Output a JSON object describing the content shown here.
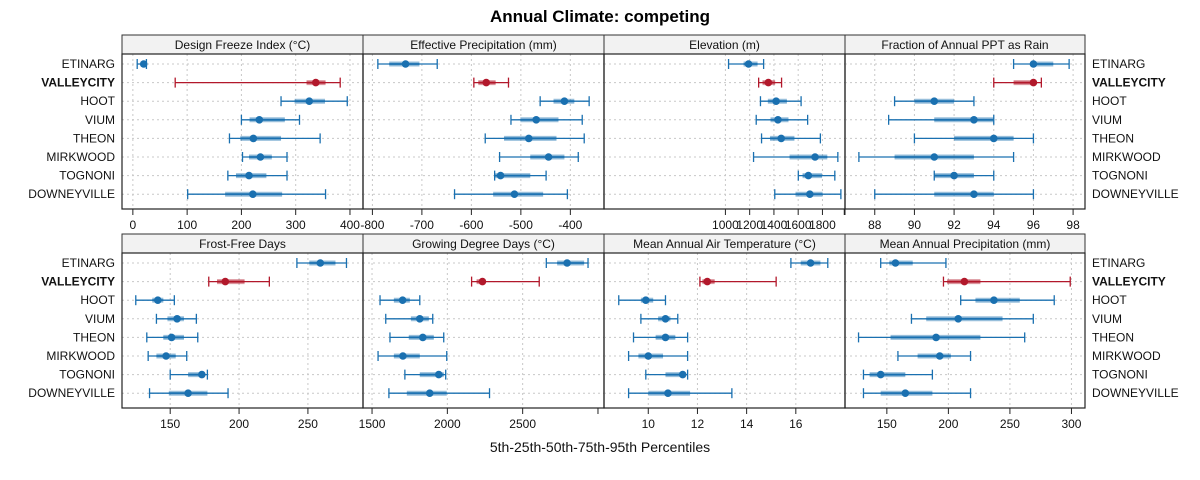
{
  "chart_data": {
    "type": "dotplot-percentile-intervals",
    "title": "Annual Climate: competing",
    "xlabel": "5th-25th-50th-75th-95th Percentiles",
    "legend": "none",
    "grid": true,
    "rows": [
      "ETINARG",
      "VALLEYCITY",
      "HOOT",
      "VIUM",
      "THEON",
      "MIRKWOOD",
      "TOGNONI",
      "DOWNEYVILLE"
    ],
    "highlight_row": "VALLEYCITY",
    "colors": {
      "default": "#1a70b0",
      "highlight": "#b2182b"
    },
    "percentile_keys": [
      "p5",
      "p25",
      "p50",
      "p75",
      "p95"
    ],
    "panels": [
      {
        "name": "Design Freeze Index (°C)",
        "xlim": [
          -20,
          424
        ],
        "ticks": [
          0,
          100,
          200,
          300,
          400
        ],
        "tick_labels": [
          "0",
          "100",
          "200",
          "300",
          "400"
        ],
        "values": [
          [
            8,
            14,
            20,
            22,
            25
          ],
          [
            78,
            320,
            337,
            355,
            382
          ],
          [
            273,
            298,
            325,
            354,
            395
          ],
          [
            200,
            215,
            233,
            280,
            307
          ],
          [
            178,
            198,
            222,
            273,
            345
          ],
          [
            202,
            214,
            235,
            256,
            284
          ],
          [
            175,
            190,
            214,
            246,
            284
          ],
          [
            101,
            170,
            221,
            275,
            355
          ]
        ]
      },
      {
        "name": "Effective Precipitation (mm)",
        "xlim": [
          -819,
          -332
        ],
        "ticks": [
          -800,
          -700,
          -600,
          -500,
          -400
        ],
        "tick_labels": [
          "-800",
          "-700",
          "-600",
          "-500",
          "-400"
        ],
        "values": [
          [
            -789,
            -766,
            -733,
            -705,
            -669
          ],
          [
            -595,
            -586,
            -570,
            -551,
            -525
          ],
          [
            -461,
            -434,
            -412,
            -392,
            -362
          ],
          [
            -520,
            -501,
            -469,
            -424,
            -376
          ],
          [
            -572,
            -534,
            -484,
            -428,
            -372
          ],
          [
            -543,
            -481,
            -444,
            -412,
            -384
          ],
          [
            -553,
            -552,
            -541,
            -481,
            -449
          ],
          [
            -634,
            -556,
            -513,
            -455,
            -406
          ]
        ]
      },
      {
        "name": "Elevation (m)",
        "xlim": [
          -1,
          1986
        ],
        "ticks": [
          1000,
          1200,
          1400,
          1600,
          1800
        ],
        "tick_labels": [
          "1000",
          "1200",
          "1400",
          "1600",
          "1800"
        ],
        "extra_ticks": [
          1980
        ],
        "values": [
          [
            1026,
            1150,
            1191,
            1265,
            1315
          ],
          [
            1274,
            1306,
            1354,
            1410,
            1463
          ],
          [
            1289,
            1350,
            1418,
            1507,
            1624
          ],
          [
            1254,
            1372,
            1433,
            1520,
            1678
          ],
          [
            1298,
            1368,
            1460,
            1569,
            1783
          ],
          [
            1232,
            1529,
            1739,
            1840,
            1927
          ],
          [
            1601,
            1636,
            1684,
            1797,
            1902
          ],
          [
            1407,
            1578,
            1696,
            1801,
            1952
          ]
        ]
      },
      {
        "name": "Fraction of Annual PPT as Rain",
        "xlim": [
          86.5,
          98.6
        ],
        "ticks": [
          88,
          90,
          92,
          94,
          96,
          98
        ],
        "tick_labels": [
          "88",
          "90",
          "92",
          "94",
          "96",
          "98"
        ],
        "extra_ticks": [
          86.5
        ],
        "values": [
          [
            95,
            96,
            96,
            97,
            97.8
          ],
          [
            94,
            95,
            96,
            96,
            96.4
          ],
          [
            89,
            90,
            91,
            92,
            93
          ],
          [
            88.7,
            91,
            93,
            94,
            94
          ],
          [
            90,
            92,
            94,
            95,
            96
          ],
          [
            87.2,
            89,
            91,
            93,
            95
          ],
          [
            91,
            91,
            92,
            93,
            94
          ],
          [
            88,
            91,
            93,
            94,
            96
          ]
        ]
      },
      {
        "name": "Frost-Free Days",
        "xlim": [
          115,
          290
        ],
        "ticks": [
          150,
          200,
          250
        ],
        "tick_labels": [
          "150",
          "200",
          "250"
        ],
        "values": [
          [
            242,
            251,
            259,
            270,
            278
          ],
          [
            178,
            184,
            190,
            204,
            222
          ],
          [
            125,
            137,
            141,
            145,
            153
          ],
          [
            140,
            148,
            155,
            160,
            169
          ],
          [
            133,
            145,
            151,
            160,
            170
          ],
          [
            134,
            140,
            147,
            154,
            162
          ],
          [
            150,
            163,
            173,
            175,
            177
          ],
          [
            135,
            149,
            163,
            177,
            192
          ]
        ]
      },
      {
        "name": "Growing Degree Days (°C)",
        "xlim": [
          1440,
          3040
        ],
        "ticks": [
          1500,
          2000,
          2500
        ],
        "tick_labels": [
          "1500",
          "2000",
          "2500"
        ],
        "extra_ticks": [
          3000
        ],
        "values": [
          [
            2657,
            2729,
            2795,
            2908,
            2934
          ],
          [
            2161,
            2194,
            2233,
            2247,
            2610
          ],
          [
            1553,
            1645,
            1703,
            1751,
            1817
          ],
          [
            1591,
            1758,
            1817,
            1877,
            1903
          ],
          [
            1619,
            1744,
            1837,
            1910,
            1976
          ],
          [
            1540,
            1645,
            1705,
            1817,
            1996
          ],
          [
            1718,
            1817,
            1943,
            1976,
            1989
          ],
          [
            1612,
            1731,
            1883,
            1996,
            2280
          ]
        ]
      },
      {
        "name": "Mean Annual Air Temperature (°C)",
        "xlim": [
          8.2,
          18.0
        ],
        "ticks": [
          10,
          12,
          14,
          16
        ],
        "tick_labels": [
          "10",
          "12",
          "14",
          "16"
        ],
        "values": [
          [
            15.8,
            16.2,
            16.6,
            17.0,
            17.3
          ],
          [
            12.1,
            12.2,
            12.4,
            12.7,
            15.2
          ],
          [
            8.8,
            9.7,
            9.9,
            10.2,
            10.7
          ],
          [
            9.7,
            10.4,
            10.7,
            10.9,
            11.2
          ],
          [
            9.4,
            10.3,
            10.7,
            11.1,
            11.6
          ],
          [
            9.2,
            9.6,
            10.0,
            10.6,
            11.6
          ],
          [
            9.9,
            10.7,
            11.4,
            11.5,
            11.6
          ],
          [
            9.2,
            10.0,
            10.8,
            11.7,
            13.4
          ]
        ]
      },
      {
        "name": "Mean Annual Precipitation (mm)",
        "xlim": [
          116,
          311
        ],
        "ticks": [
          150,
          200,
          250,
          300
        ],
        "tick_labels": [
          "150",
          "200",
          "250",
          "300"
        ],
        "values": [
          [
            145,
            152,
            157,
            171,
            198
          ],
          [
            196,
            199,
            213,
            226,
            299
          ],
          [
            210,
            222,
            237,
            258,
            286
          ],
          [
            170,
            182,
            208,
            244,
            269
          ],
          [
            127,
            153,
            190,
            226,
            262
          ],
          [
            159,
            175,
            193,
            202,
            218
          ],
          [
            131,
            136,
            145,
            165,
            187
          ],
          [
            131,
            145,
            165,
            187,
            218
          ]
        ]
      }
    ]
  }
}
